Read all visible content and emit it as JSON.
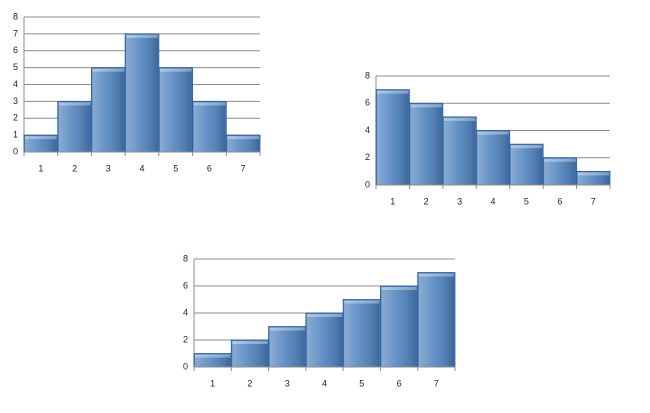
{
  "chart_data": [
    {
      "type": "bar",
      "categories": [
        "1",
        "2",
        "3",
        "4",
        "5",
        "6",
        "7"
      ],
      "values": [
        1,
        3,
        5,
        7,
        5,
        3,
        1
      ],
      "color": "#4a7ebb",
      "ylim": [
        0,
        8
      ],
      "yticks": [
        0,
        1,
        2,
        3,
        4,
        5,
        6,
        7,
        8
      ],
      "grid": true
    },
    {
      "type": "bar",
      "categories": [
        "1",
        "2",
        "3",
        "4",
        "5",
        "6",
        "7"
      ],
      "values": [
        7,
        6,
        5,
        4,
        3,
        2,
        1
      ],
      "color": "#4a7ebb",
      "ylim": [
        0,
        8
      ],
      "yticks": [
        0,
        2,
        4,
        6,
        8
      ],
      "grid": true
    },
    {
      "type": "bar",
      "categories": [
        "1",
        "2",
        "3",
        "4",
        "5",
        "6",
        "7"
      ],
      "values": [
        1,
        2,
        3,
        4,
        5,
        6,
        7
      ],
      "color": "#4a7ebb",
      "ylim": [
        0,
        8
      ],
      "yticks": [
        0,
        2,
        4,
        6,
        8
      ],
      "grid": true
    }
  ]
}
